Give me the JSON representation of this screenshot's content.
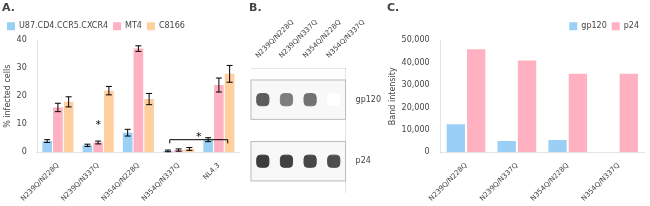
{
  "chart_data": [
    {
      "type": "bar",
      "title": "A.",
      "ylabel": "% infected cells",
      "categories": [
        "N239Q/N228Q",
        "N239Q/N337Q",
        "N354Q/N228Q",
        "N354Q/N337Q",
        "NL4.3"
      ],
      "series": [
        {
          "name": "U87.CD4.CCR5.CXCR4",
          "values": [
            4.0,
            2.5,
            7.0,
            0.5,
            4.5
          ],
          "errors": [
            0.5,
            0.4,
            1.2,
            0.3,
            0.7
          ]
        },
        {
          "name": "MT4",
          "values": [
            16.0,
            3.5,
            37.0,
            0.8,
            24.0
          ],
          "errors": [
            1.5,
            0.5,
            1.0,
            0.4,
            2.5
          ]
        },
        {
          "name": "C8166",
          "values": [
            18.0,
            22.0,
            19.0,
            1.2,
            28.0
          ],
          "errors": [
            1.8,
            1.5,
            2.0,
            0.5,
            3.0
          ]
        }
      ],
      "ylim": [
        0,
        40
      ],
      "yticks": [
        0,
        10,
        20,
        30,
        40
      ],
      "legend": "upper left",
      "grid": false,
      "annotations": [
        {
          "text": "*",
          "x": 1.0,
          "y": 9.0
        },
        {
          "text": "*",
          "x1": 2.78,
          "x2": 4.22,
          "y": 3.2,
          "y_top": 4.5,
          "text_y": 4.8
        }
      ]
    },
    {
      "type": "heatmap",
      "title": "B.",
      "categories": [
        "N239Q/N228Q",
        "N239Q/N337Q",
        "N354Q/N228Q",
        "N354Q/N337Q"
      ],
      "rows": [
        "gp120",
        "p24"
      ],
      "cells": [
        [
          0.75,
          0.6,
          0.65,
          0.0
        ],
        [
          0.9,
          0.88,
          0.85,
          0.82
        ]
      ],
      "grid": false
    },
    {
      "type": "bar",
      "title": "C.",
      "ylabel": "Band intensity",
      "categories": [
        "N239Q/N228Q",
        "N239Q/N337Q",
        "N354Q/N228Q",
        "N354Q/N337Q"
      ],
      "series": [
        {
          "name": "gp120",
          "values": [
            12500,
            5000,
            5500,
            0
          ]
        },
        {
          "name": "p24",
          "values": [
            46000,
            41000,
            35000,
            35000
          ]
        }
      ],
      "ylim": [
        0,
        50000
      ],
      "yticks": [
        0,
        {
          "value": 10000,
          "label": "10,000"
        },
        {
          "value": 20000,
          "label": "20,000"
        },
        {
          "value": 30000,
          "label": "30,000"
        },
        {
          "value": 40000,
          "label": "40,000"
        },
        {
          "value": 50000,
          "label": "50,000"
        }
      ],
      "legend": "upper right",
      "grid": false
    }
  ]
}
